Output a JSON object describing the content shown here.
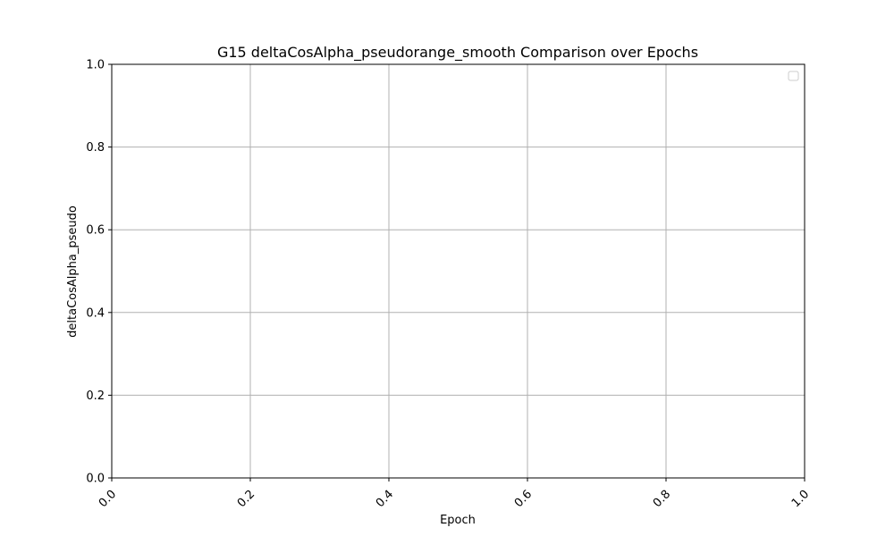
{
  "chart_data": {
    "type": "line",
    "title": "G15 deltaCosAlpha_pseudorange_smooth Comparison over Epochs",
    "xlabel": "Epoch",
    "ylabel": "deltaCosAlpha_pseudo",
    "xlim": [
      0.0,
      1.0
    ],
    "ylim": [
      0.0,
      1.0
    ],
    "xticks": [
      "0.0",
      "0.2",
      "0.4",
      "0.6",
      "0.8",
      "1.0"
    ],
    "yticks": [
      "0.0",
      "0.2",
      "0.4",
      "0.6",
      "0.8",
      "1.0"
    ],
    "grid": true,
    "legend": {
      "placement": "top-right",
      "entries": []
    },
    "series": []
  }
}
